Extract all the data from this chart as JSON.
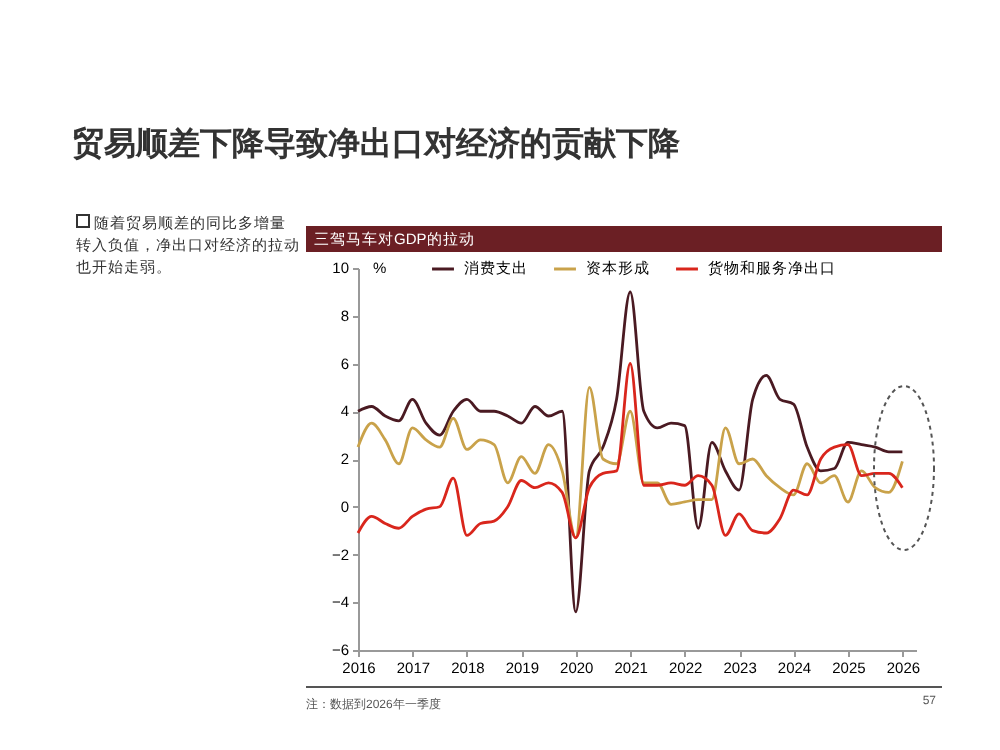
{
  "chart_data": {
    "type": "line",
    "title": "贸易顺差下降导致净出口对经济的贡献下降",
    "subtitle": "三驾马车对GDP的拉动",
    "ylabel": "%",
    "x": [
      2016,
      2016.25,
      2016.5,
      2016.75,
      2017,
      2017.25,
      2017.5,
      2017.75,
      2018,
      2018.25,
      2018.5,
      2018.75,
      2019,
      2019.25,
      2019.5,
      2019.75,
      2020,
      2020.25,
      2020.5,
      2020.75,
      2021,
      2021.25,
      2021.5,
      2021.75,
      2022,
      2022.25,
      2022.5,
      2022.75,
      2023,
      2023.25,
      2023.5,
      2023.75,
      2024,
      2024.25,
      2024.5,
      2024.75,
      2025,
      2025.25,
      2025.5,
      2025.75,
      2026
    ],
    "series": [
      {
        "name": "消费支出",
        "color": "#4a1a22",
        "values": [
          4.0,
          4.2,
          3.8,
          3.6,
          4.5,
          3.5,
          3.0,
          4.0,
          4.5,
          4.0,
          4.0,
          3.8,
          3.5,
          4.2,
          3.8,
          4.0,
          -4.4,
          1.5,
          2.5,
          4.5,
          9.0,
          4.0,
          3.3,
          3.5,
          3.4,
          -0.9,
          2.7,
          1.5,
          0.7,
          4.5,
          5.5,
          4.5,
          4.3,
          2.5,
          1.5,
          1.6,
          2.7,
          2.6,
          2.5,
          2.3,
          2.3
        ]
      },
      {
        "name": "资本形成",
        "color": "#c9a24a",
        "values": [
          2.5,
          3.5,
          2.8,
          1.8,
          3.3,
          2.8,
          2.5,
          3.7,
          2.4,
          2.8,
          2.6,
          1.0,
          2.1,
          1.4,
          2.6,
          1.5,
          -1.3,
          5.0,
          2.0,
          1.8,
          4.0,
          1.0,
          1.0,
          0.1,
          0.2,
          0.3,
          0.3,
          3.3,
          1.8,
          2.0,
          1.3,
          0.8,
          0.5,
          1.8,
          1.0,
          1.3,
          0.2,
          1.5,
          0.8,
          0.6,
          1.9
        ]
      },
      {
        "name": "货物和服务净出口",
        "color": "#d9261c",
        "values": [
          -1.1,
          -0.4,
          -0.7,
          -0.9,
          -0.4,
          -0.1,
          0.0,
          1.2,
          -1.2,
          -0.7,
          -0.6,
          0.0,
          1.1,
          0.8,
          1.0,
          0.6,
          -1.3,
          0.8,
          1.4,
          1.5,
          6.0,
          0.9,
          0.9,
          1.0,
          0.9,
          1.3,
          0.9,
          -1.2,
          -0.3,
          -1.0,
          -1.1,
          -0.5,
          0.7,
          0.5,
          2.0,
          2.5,
          2.6,
          1.3,
          1.4,
          1.4,
          0.8
        ]
      }
    ],
    "xlim": [
      2016,
      2026.25
    ],
    "xticks": [
      2016,
      2017,
      2018,
      2019,
      2020,
      2021,
      2022,
      2023,
      2024,
      2025,
      2026
    ],
    "ylim": [
      -6,
      10
    ],
    "yticks": [
      -6,
      -4,
      -2,
      0,
      2,
      4,
      6,
      8,
      10
    ],
    "legend": "top",
    "grid": false,
    "annotations": [
      "随着贸易顺差的同比多增量转入负值，净出口对经济的拉动也开始走弱。",
      "注：数据到2026年一季度",
      "57"
    ]
  }
}
